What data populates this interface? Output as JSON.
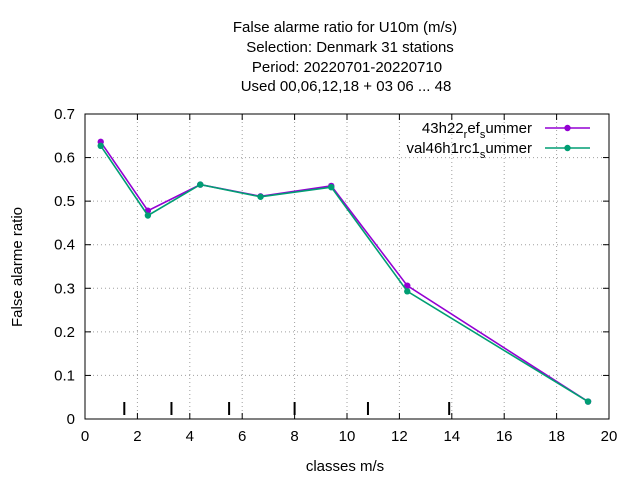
{
  "chart_data": {
    "type": "line",
    "title_lines": [
      "False alarme ratio  for U10m (m/s)",
      "Selection: Denmark      31 stations",
      "Period: 20220701-20220710",
      "Used  00,06,12,18  + 03 06 ... 48"
    ],
    "xlabel": "classes m/s",
    "ylabel": "False alarme ratio",
    "xlim": [
      0,
      20
    ],
    "ylim": [
      0,
      0.7
    ],
    "xticks": [
      0,
      2,
      4,
      6,
      8,
      10,
      12,
      14,
      16,
      18,
      20
    ],
    "yticks": [
      0,
      0.1,
      0.2,
      0.3,
      0.4,
      0.5,
      0.6,
      0.7
    ],
    "xtick_labels": [
      "0",
      "2",
      "4",
      "6",
      "8",
      "10",
      "12",
      "14",
      "16",
      "18",
      "20"
    ],
    "ytick_labels": [
      "0",
      "0.1",
      "0.2",
      "0.3",
      "0.4",
      "0.5",
      "0.6",
      "0.7"
    ],
    "grid": true,
    "legend_position": "top-right",
    "class_boundaries": [
      1.5,
      3.3,
      5.5,
      8.0,
      10.8,
      13.9
    ],
    "series": [
      {
        "name_parts": [
          "43h22",
          "r",
          "ef",
          "s",
          "ummer"
        ],
        "color": "#9400d3",
        "x": [
          0.6,
          2.4,
          4.4,
          6.7,
          9.4,
          12.3,
          19.2
        ],
        "y": [
          0.636,
          0.478,
          0.538,
          0.511,
          0.535,
          0.306,
          0.04
        ]
      },
      {
        "name_parts": [
          "val46h1rc1",
          "s",
          "ummer"
        ],
        "color": "#009e73",
        "x": [
          0.6,
          2.4,
          4.4,
          6.7,
          9.4,
          12.3,
          19.2
        ],
        "y": [
          0.627,
          0.467,
          0.538,
          0.51,
          0.532,
          0.293,
          0.04
        ]
      }
    ]
  }
}
